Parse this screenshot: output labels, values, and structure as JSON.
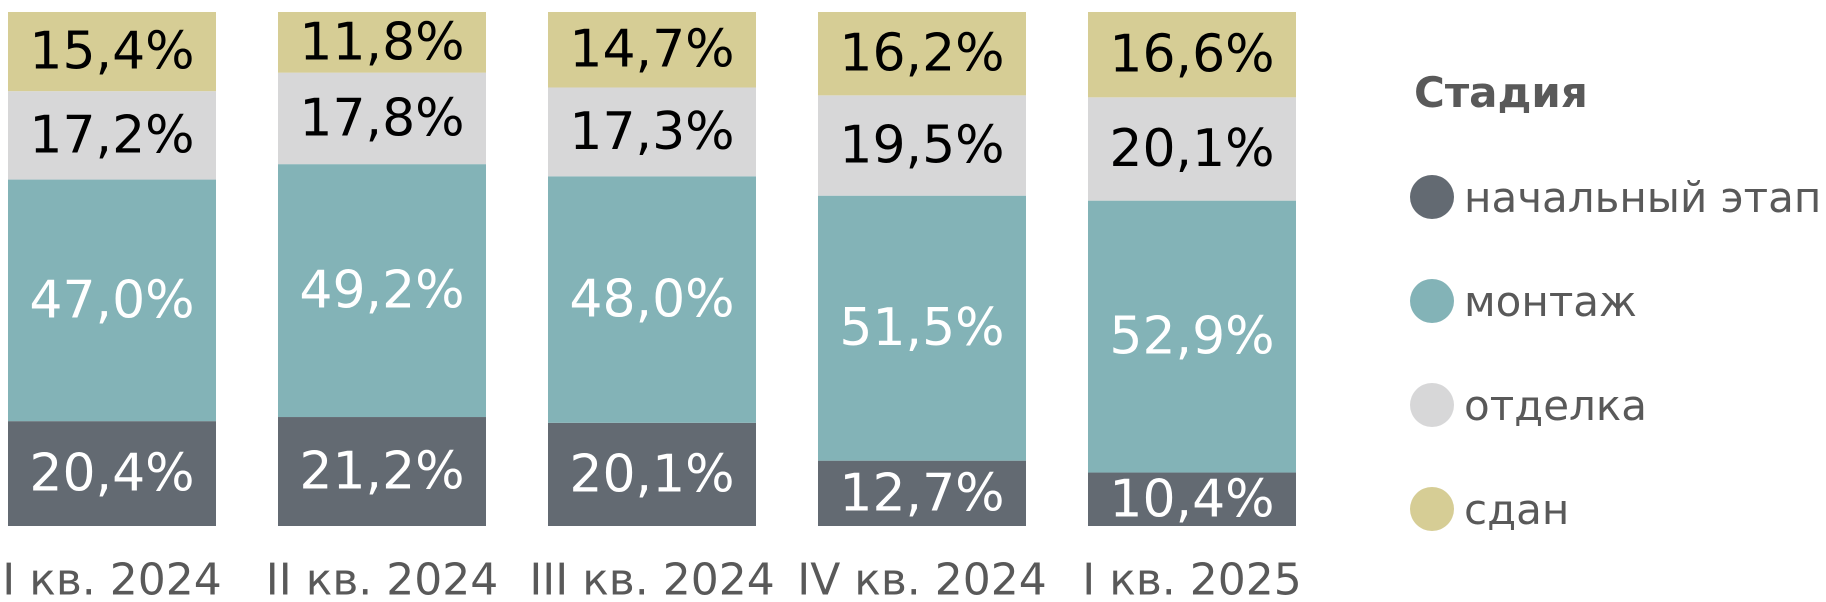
{
  "chart_data": {
    "type": "bar",
    "stacked": true,
    "normalized": true,
    "categories": [
      "I кв. 2024",
      "II кв. 2024",
      "III кв. 2024",
      "IV кв. 2024",
      "I кв. 2025"
    ],
    "series": [
      {
        "name": "начальный этап",
        "color": "#636A72",
        "label_color": "#ffffff",
        "values": [
          20.4,
          21.2,
          20.1,
          12.7,
          10.4
        ],
        "labels": [
          "20,4%",
          "21,2%",
          "20,1%",
          "12,7%",
          "10,4%"
        ]
      },
      {
        "name": "монтаж",
        "color": "#83B3B7",
        "label_color": "#ffffff",
        "values": [
          47.0,
          49.2,
          48.0,
          51.5,
          52.9
        ],
        "labels": [
          "47,0%",
          "49,2%",
          "48,0%",
          "51,5%",
          "52,9%"
        ]
      },
      {
        "name": "отделка",
        "color": "#D7D7D8",
        "label_color": "#000000",
        "values": [
          17.2,
          17.8,
          17.3,
          19.5,
          20.1
        ],
        "labels": [
          "17,2%",
          "17,8%",
          "17,3%",
          "19,5%",
          "20,1%"
        ]
      },
      {
        "name": "сдан",
        "color": "#D6CD95",
        "label_color": "#000000",
        "values": [
          15.4,
          11.8,
          14.7,
          16.2,
          16.6
        ],
        "labels": [
          "15,4%",
          "11,8%",
          "14,7%",
          "16,2%",
          "16,6%"
        ]
      }
    ],
    "ylim": [
      0,
      100
    ],
    "grid": false,
    "legend": {
      "title": "Стадия",
      "position": "right"
    }
  }
}
